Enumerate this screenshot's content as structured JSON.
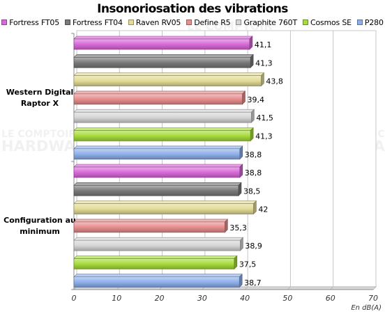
{
  "chart_data": {
    "type": "bar",
    "orientation": "horizontal",
    "title": "Insonoriosation des vibrations",
    "xlabel": "En dB(A)",
    "xlim": [
      0,
      70
    ],
    "xticks": [
      0,
      10,
      20,
      30,
      40,
      50,
      60,
      70
    ],
    "grid": true,
    "legend_position": "top",
    "categories": [
      "Western Digital Raptor X",
      "Configuration au minimum"
    ],
    "category_lines": [
      [
        "Western Digital",
        "Raptor X"
      ],
      [
        "Configuration au",
        "minimum"
      ]
    ],
    "series": [
      {
        "name": "Fortress FT05",
        "color": "#d96ad9",
        "values": [
          41.1,
          38.8
        ],
        "labels": [
          "41,1",
          "38,8"
        ]
      },
      {
        "name": "Fortress FT04",
        "color": "#7a7a7a",
        "values": [
          41.3,
          38.5
        ],
        "labels": [
          "41,3",
          "38,5"
        ]
      },
      {
        "name": "Raven RV05",
        "color": "#e2dc96",
        "values": [
          43.8,
          42
        ],
        "labels": [
          "43,8",
          "42"
        ]
      },
      {
        "name": "Define R5",
        "color": "#e88e8e",
        "values": [
          39.4,
          35.3
        ],
        "labels": [
          "39,4",
          "35,3"
        ]
      },
      {
        "name": "Graphite 760T",
        "color": "#d6d6d6",
        "values": [
          41.5,
          38.9
        ],
        "labels": [
          "41,5",
          "38,9"
        ]
      },
      {
        "name": "Cosmos SE",
        "color": "#a8dc3c",
        "values": [
          41.3,
          37.5
        ],
        "labels": [
          "41,3",
          "37,5"
        ]
      },
      {
        "name": "P280",
        "color": "#8eb0ea",
        "values": [
          38.8,
          38.7
        ],
        "labels": [
          "38,8",
          "38,7"
        ]
      }
    ]
  },
  "watermark": {
    "line1": "LE COMPTOIR",
    "line2": "HARDWARE"
  }
}
